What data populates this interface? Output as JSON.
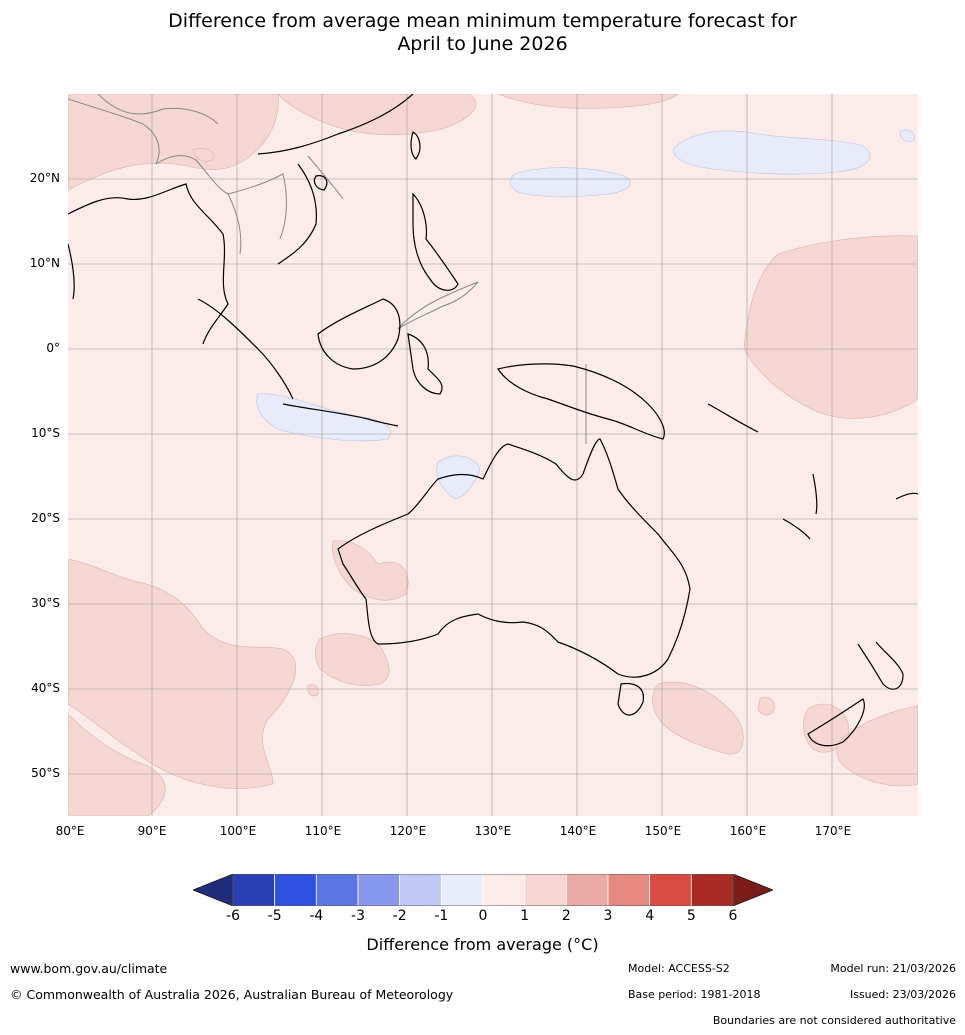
{
  "title_line1": "Difference from average mean minimum temperature forecast for",
  "title_line2": "April to June 2026",
  "map": {
    "lat_labels": [
      "20°N",
      "10°N",
      "0°",
      "10°S",
      "20°S",
      "30°S",
      "40°S",
      "50°S"
    ],
    "lon_labels": [
      "80°E",
      "90°E",
      "100°E",
      "110°E",
      "120°E",
      "130°E",
      "140°E",
      "150°E",
      "160°E",
      "170°E"
    ],
    "fill_colors": {
      "ocean_default": "#fbebe9",
      "warm_1_2": "#f5d6d3",
      "cool_0_-1": "#e8ecfa",
      "coast": "#000000",
      "border": "#888888"
    }
  },
  "colorbar": {
    "ticks": [
      "-6",
      "-5",
      "-4",
      "-3",
      "-2",
      "-1",
      "0",
      "1",
      "2",
      "3",
      "4",
      "5",
      "6"
    ],
    "colors": [
      "#253494",
      "#2b3fb5",
      "#3050e0",
      "#5b75e3",
      "#8898ec",
      "#c0c8f5",
      "#e8ecfa",
      "#fcebe9",
      "#f5d6d3",
      "#ebaba5",
      "#e58880",
      "#d94b42",
      "#a82a24"
    ],
    "under_color": "#1f2d7a",
    "over_color": "#7a1c1a",
    "label": "Difference from average (°C)"
  },
  "footer": {
    "url": "www.bom.gov.au/climate",
    "copyright": "© Commonwealth of Australia 2026, Australian Bureau of Meteorology",
    "model": "Model: ACCESS-S2",
    "base_period": "Base period: 1981-2018",
    "model_run": "Model run: 21/03/2026",
    "issued": "Issued: 23/03/2026",
    "disclaimer": "Boundaries are not considered authoritative"
  }
}
